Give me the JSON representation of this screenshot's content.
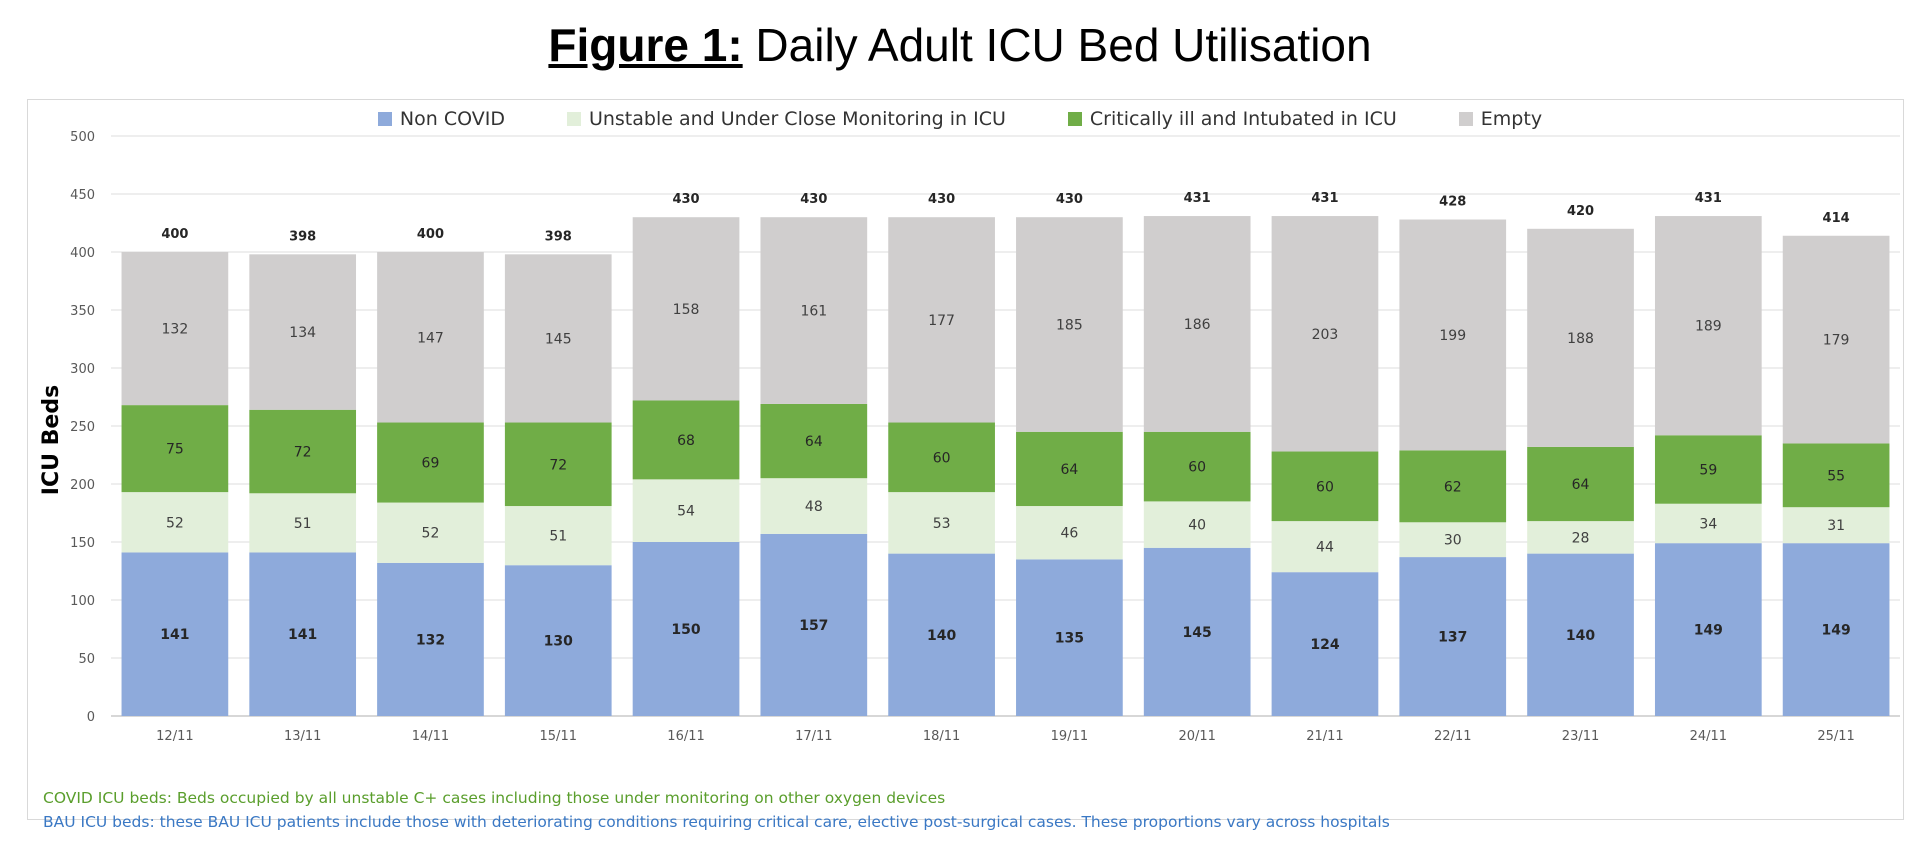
{
  "title": {
    "prefix": "Figure 1:",
    "text": " Daily Adult ICU Bed Utilisation"
  },
  "notes": {
    "covid": "COVID ICU beds: Beds occupied by all unstable C+ cases including those under monitoring on other oxygen devices",
    "bau": "BAU ICU beds: these BAU ICU patients include those with deteriorating conditions requiring critical care, elective post-surgical cases. These proportions vary across hospitals"
  },
  "chart_data": {
    "type": "bar",
    "stacked": true,
    "title": "Figure 1: Daily Adult ICU Bed Utilisation",
    "ylabel": "ICU Beds",
    "xlabel": "",
    "ylim": [
      0,
      500
    ],
    "yticks": [
      0,
      50,
      100,
      150,
      200,
      250,
      300,
      350,
      400,
      450,
      500
    ],
    "grid": true,
    "legend": "top-center",
    "categories": [
      "12/11",
      "13/11",
      "14/11",
      "15/11",
      "16/11",
      "17/11",
      "18/11",
      "19/11",
      "20/11",
      "21/11",
      "22/11",
      "23/11",
      "24/11",
      "25/11"
    ],
    "series": [
      {
        "name": "Non COVID",
        "color": "#8eaadb",
        "values": [
          141,
          141,
          132,
          130,
          150,
          157,
          140,
          135,
          145,
          124,
          137,
          140,
          149,
          149
        ]
      },
      {
        "name": "Unstable and Under Close Monitoring in ICU",
        "color": "#e2efda",
        "values": [
          52,
          51,
          52,
          51,
          54,
          48,
          53,
          46,
          40,
          44,
          30,
          28,
          34,
          31
        ]
      },
      {
        "name": "Critically ill and Intubated in ICU",
        "color": "#70ad47",
        "values": [
          75,
          72,
          69,
          72,
          68,
          64,
          60,
          64,
          60,
          60,
          62,
          64,
          59,
          55
        ]
      },
      {
        "name": "Empty",
        "color": "#d0cece",
        "values": [
          132,
          134,
          147,
          145,
          158,
          161,
          177,
          185,
          186,
          203,
          199,
          188,
          189,
          179
        ]
      }
    ],
    "totals": [
      400,
      398,
      400,
      398,
      430,
      430,
      430,
      430,
      431,
      431,
      428,
      420,
      431,
      414
    ]
  }
}
